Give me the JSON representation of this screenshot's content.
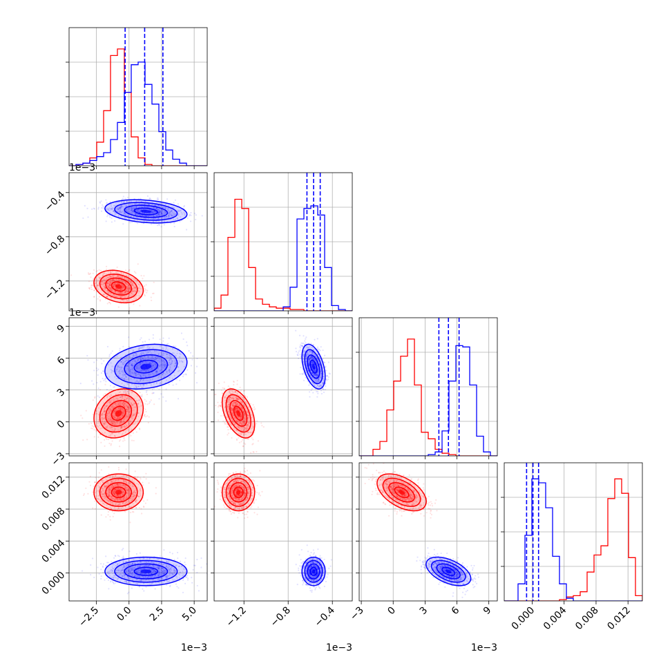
{
  "chart_data": {
    "type": "corner",
    "grid": true,
    "parameters": [
      {
        "range": [
          -4.6,
          6.0
        ],
        "ticks": [
          -2.5,
          0.0,
          2.5,
          5.0
        ],
        "tick_labels": [
          "−2.5",
          "0.0",
          "2.5",
          "5.0"
        ],
        "offset_text": "1e−3"
      },
      {
        "range": [
          -1.47,
          -0.22
        ],
        "ticks": [
          -1.2,
          -0.8,
          -0.4
        ],
        "tick_labels": [
          "−1.2",
          "−0.8",
          "−0.4"
        ],
        "offset_text": "1e−3"
      },
      {
        "range": [
          -3.2,
          9.8
        ],
        "ticks": [
          -3,
          0,
          3,
          6,
          9
        ],
        "tick_labels": [
          "−3",
          "0",
          "3",
          "6",
          "9"
        ],
        "offset_text": "1e−3"
      },
      {
        "range": [
          -0.0035,
          0.0138
        ],
        "ticks": [
          0.0,
          0.004,
          0.008,
          0.012
        ],
        "tick_labels": [
          "0.000",
          "0.004",
          "0.008",
          "0.012"
        ],
        "offset_text": ""
      }
    ],
    "series": [
      {
        "color": "#ff0000",
        "fill": "#ff0000",
        "center": [
          -0.8,
          -1.25,
          0.8,
          0.0101
        ],
        "sigma": [
          0.9,
          0.07,
          1.1,
          0.0011
        ],
        "histograms": [
          [
            0.0,
            0.01,
            0.02,
            0.06,
            0.18,
            0.42,
            0.84,
            0.89,
            0.56,
            0.22,
            0.06,
            0.01,
            0.0,
            0.0,
            0.0,
            0.0,
            0.0,
            0.0,
            0.0,
            0.0
          ],
          [
            0.02,
            0.12,
            0.56,
            0.85,
            0.78,
            0.33,
            0.09,
            0.05,
            0.03,
            0.02,
            0.02,
            0.01,
            0.01,
            0.0,
            0.0,
            0.0,
            0.0,
            0.0,
            0.0,
            0.0
          ],
          [
            0.0,
            0.0,
            0.05,
            0.11,
            0.35,
            0.57,
            0.76,
            0.89,
            0.54,
            0.18,
            0.13,
            0.05,
            0.02,
            0.01,
            0.0,
            0.0,
            0.0,
            0.0,
            0.0,
            0.0
          ],
          [
            0.0,
            0.0,
            0.0,
            0.0,
            0.0,
            0.0,
            0.0,
            0.0,
            0.01,
            0.03,
            0.04,
            0.07,
            0.22,
            0.35,
            0.42,
            0.78,
            0.93,
            0.82,
            0.33,
            0.04
          ]
        ]
      },
      {
        "color": "#0000ff",
        "fill": "#0000ff",
        "center": [
          1.3,
          -0.57,
          5.2,
          0.0002
        ],
        "sigma": [
          1.5,
          0.05,
          1.0,
          0.00085
        ],
        "histograms": [
          [
            0.0,
            0.01,
            0.02,
            0.04,
            0.07,
            0.1,
            0.2,
            0.33,
            0.56,
            0.77,
            0.79,
            0.62,
            0.47,
            0.26,
            0.12,
            0.05,
            0.02,
            0.0,
            0.0,
            0.0
          ],
          [
            0.0,
            0.0,
            0.0,
            0.0,
            0.0,
            0.0,
            0.0,
            0.0,
            0.0,
            0.0,
            0.03,
            0.18,
            0.7,
            0.78,
            0.8,
            0.73,
            0.33,
            0.04,
            0.01,
            0.0
          ],
          [
            0.0,
            0.0,
            0.0,
            0.0,
            0.0,
            0.0,
            0.0,
            0.0,
            0.0,
            0.0,
            0.01,
            0.03,
            0.19,
            0.57,
            0.84,
            0.83,
            0.54,
            0.15,
            0.03,
            0.0
          ],
          [
            0.0,
            0.0,
            0.13,
            0.5,
            0.93,
            0.9,
            0.71,
            0.34,
            0.13,
            0.02,
            0.0,
            0.0,
            0.0,
            0.0,
            0.0,
            0.0,
            0.0,
            0.0,
            0.0,
            0.0
          ]
        ]
      }
    ],
    "quantile_lines": {
      "color": "#0000ff",
      "style": "dashed",
      "values": [
        [
          -0.3,
          1.2,
          2.6
        ],
        [
          -0.63,
          -0.57,
          -0.51
        ],
        [
          4.3,
          5.2,
          6.2
        ],
        [
          -0.0007,
          0.0001,
          0.0008
        ]
      ]
    },
    "correlations": {
      "1-0": -0.25,
      "2-0": 0.2,
      "2-1": -0.45,
      "3-0": 0.0,
      "3-1": 0.0,
      "3-2": -0.5
    },
    "contour_levels": [
      "0.5",
      "1",
      "1.5",
      "2"
    ]
  }
}
